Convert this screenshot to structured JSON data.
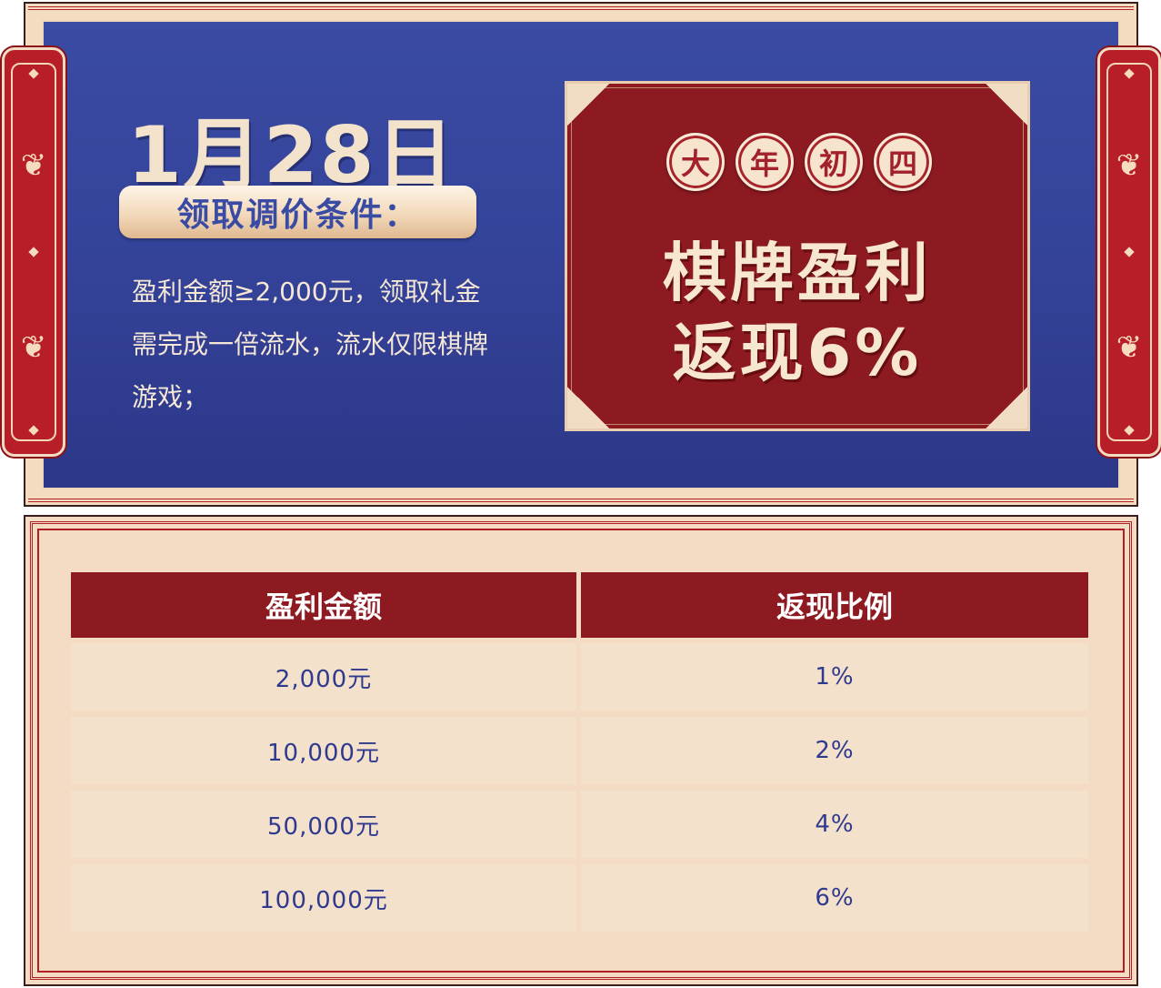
{
  "banner": {
    "date": "1月28日",
    "condition_title": "领取调价条件：",
    "description": "盈利金额≥2,000元，领取礼金需完成一倍流水，流水仅限棋牌游戏；",
    "badges": [
      "大",
      "年",
      "初",
      "四"
    ],
    "headline_line1": "棋牌盈利",
    "headline_line2": "返现6%"
  },
  "table": {
    "headers": [
      "盈利金额",
      "返现比例"
    ],
    "rows": [
      [
        "2,000元",
        "1%"
      ],
      [
        "10,000元",
        "2%"
      ],
      [
        "50,000元",
        "4%"
      ],
      [
        "100,000元",
        "6%"
      ]
    ]
  },
  "colors": {
    "primary_blue": "#3a4ba3",
    "primary_red": "#8e1a21",
    "cream": "#f4e1cb"
  },
  "icons": [
    "wheat-icon",
    "diamond-icon"
  ]
}
